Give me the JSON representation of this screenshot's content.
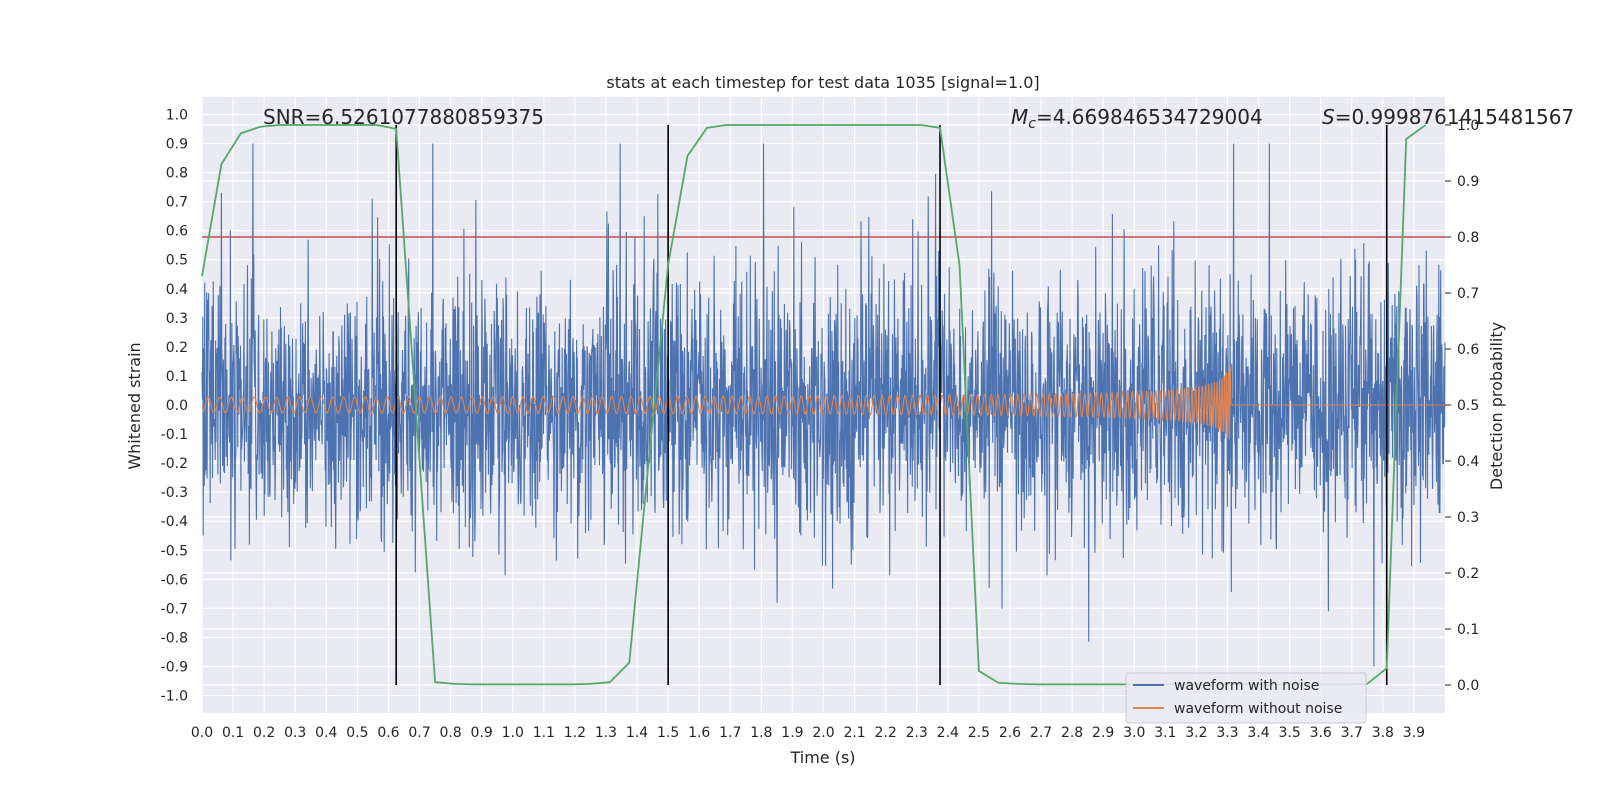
{
  "chart_data": {
    "type": "line",
    "title": "stats at each timestep for test data 1035 [signal=1.0]",
    "xlabel": "Time (s)",
    "ylabel": "Whitened strain",
    "y2label": "Detection probability",
    "xlim": [
      0.0,
      4.0
    ],
    "ylim": [
      -1.06,
      1.06
    ],
    "y2lim": [
      -0.05,
      1.05
    ],
    "x_ticks": [
      "0.0",
      "0.1",
      "0.2",
      "0.3",
      "0.4",
      "0.5",
      "0.6",
      "0.7",
      "0.8",
      "0.9",
      "1.0",
      "1.1",
      "1.2",
      "1.3",
      "1.4",
      "1.5",
      "1.6",
      "1.7",
      "1.8",
      "1.9",
      "2.0",
      "2.1",
      "2.2",
      "2.3",
      "2.4",
      "2.5",
      "2.6",
      "2.7",
      "2.8",
      "2.9",
      "3.0",
      "3.1",
      "3.2",
      "3.3",
      "3.4",
      "3.5",
      "3.6",
      "3.7",
      "3.8",
      "3.9"
    ],
    "y_ticks": [
      "1.0",
      "0.9",
      "0.8",
      "0.7",
      "0.6",
      "0.5",
      "0.4",
      "0.3",
      "0.2",
      "0.1",
      "0.0",
      "-0.1",
      "-0.2",
      "-0.3",
      "-0.4",
      "-0.5",
      "-0.6",
      "-0.7",
      "-0.8",
      "-0.9",
      "-1.0"
    ],
    "y2_ticks": [
      "1.0",
      "0.9",
      "0.8",
      "0.7",
      "0.6",
      "0.5",
      "0.4",
      "0.3",
      "0.2",
      "0.1",
      "0.0"
    ],
    "grid": true,
    "threshold": {
      "value": 0.8,
      "axis": "right",
      "color": "#c44e52"
    },
    "vertical_lines": [
      0.625,
      1.5,
      2.375,
      3.8125
    ],
    "annotations": {
      "snr": "SNR=6.526107788085937​5",
      "mc_symbol": "M",
      "mc_sub": "c",
      "mc_value": "=4.669846534729004",
      "s_symbol": "S",
      "s_value": "=0.9998761415481567"
    },
    "series": [
      {
        "name": "waveform with noise",
        "color": "#4c72b0",
        "kind": "noise",
        "amplitude_typical": 0.35,
        "amplitude_peak": 0.9
      },
      {
        "name": "waveform without noise",
        "color": "#dd8452",
        "kind": "chirp",
        "amplitude_start": 0.02,
        "amplitude_end": 0.14,
        "merger_time": 3.31
      },
      {
        "name": "detection probability",
        "color": "#55a868",
        "axis": "right",
        "x": [
          0.0,
          0.0625,
          0.125,
          0.1875,
          0.25,
          0.3125,
          0.375,
          0.4375,
          0.5,
          0.5625,
          0.625,
          0.6875,
          0.75,
          0.8125,
          0.875,
          0.9375,
          1.0,
          1.0625,
          1.125,
          1.1875,
          1.25,
          1.3125,
          1.375,
          1.4375,
          1.5,
          1.5625,
          1.625,
          1.6875,
          1.75,
          1.8125,
          1.875,
          1.9375,
          2.0,
          2.0625,
          2.125,
          2.1875,
          2.25,
          2.3125,
          2.375,
          2.4375,
          2.5,
          2.5625,
          2.625,
          2.6875,
          2.75,
          2.8125,
          2.875,
          2.9375,
          3.0,
          3.0625,
          3.125,
          3.1875,
          3.25,
          3.3125,
          3.375,
          3.4375,
          3.5,
          3.5625,
          3.625,
          3.6875,
          3.75,
          3.8125,
          3.875,
          3.9375
        ],
        "values": [
          0.73,
          0.93,
          0.985,
          0.997,
          1.0,
          1.0,
          1.0,
          1.0,
          1.0,
          1.0,
          0.993,
          0.5,
          0.005,
          0.002,
          0.001,
          0.001,
          0.001,
          0.001,
          0.001,
          0.001,
          0.002,
          0.005,
          0.04,
          0.4,
          0.75,
          0.945,
          0.995,
          1.0,
          1.0,
          1.0,
          1.0,
          1.0,
          1.0,
          1.0,
          1.0,
          1.0,
          1.0,
          1.0,
          0.995,
          0.75,
          0.025,
          0.004,
          0.002,
          0.001,
          0.001,
          0.001,
          0.001,
          0.001,
          0.001,
          0.001,
          0.001,
          0.001,
          0.001,
          0.001,
          0.001,
          0.001,
          0.001,
          0.001,
          0.001,
          0.001,
          0.002,
          0.03,
          0.975,
          1.0
        ]
      }
    ],
    "legend": {
      "position": "lower-right",
      "entries": [
        "waveform with noise",
        "waveform without noise"
      ]
    }
  }
}
